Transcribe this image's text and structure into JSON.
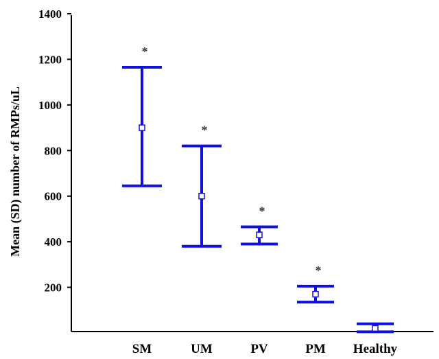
{
  "chart_data": {
    "type": "errorbar",
    "title": "",
    "xlabel": "",
    "ylabel": "Mean (SD) number of RMPs/uL",
    "ylim": [
      0,
      1400
    ],
    "yticks": [
      200,
      400,
      600,
      800,
      1000,
      1200,
      1400
    ],
    "categories": [
      "SM",
      "UM",
      "PV",
      "PM",
      "Healthy"
    ],
    "series": [
      {
        "mean": [
          900,
          600,
          430,
          170,
          20
        ],
        "lower": [
          645,
          380,
          390,
          135,
          5
        ],
        "upper": [
          1165,
          820,
          465,
          205,
          40
        ],
        "significance": [
          "*",
          "*",
          "*",
          "*",
          ""
        ]
      }
    ],
    "color": "#1010dd",
    "grid": false
  }
}
